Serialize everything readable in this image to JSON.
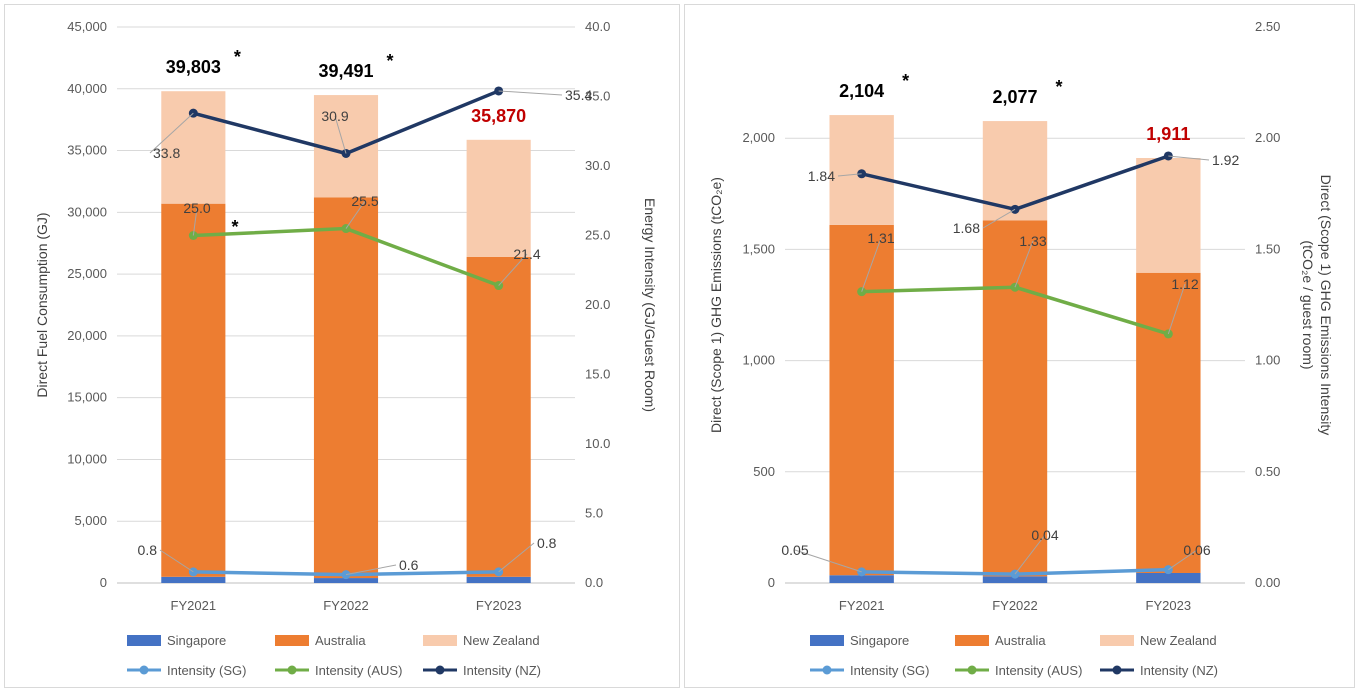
{
  "chart_data": [
    {
      "type": "bar",
      "stacked": true,
      "categories": [
        "FY2021",
        "FY2022",
        "FY2023"
      ],
      "series": [
        {
          "name": "Singapore",
          "kind": "bar",
          "color": "#4472c4",
          "values": [
            500,
            400,
            500
          ]
        },
        {
          "name": "Australia",
          "kind": "bar",
          "color": "#ed7d31",
          "values": [
            30200,
            30800,
            25900
          ]
        },
        {
          "name": "New Zealand",
          "kind": "bar",
          "color": "#f8cbad",
          "values": [
            9103,
            8291,
            9470
          ]
        },
        {
          "name": "Intensity (SG)",
          "kind": "line",
          "axis": "right",
          "color": "#5b9bd5",
          "values": [
            0.8,
            0.6,
            0.8
          ],
          "labels": [
            "0.8",
            "0.6",
            "0.8"
          ]
        },
        {
          "name": "Intensity (AUS)",
          "kind": "line",
          "axis": "right",
          "color": "#70ad47",
          "values": [
            25.0,
            25.5,
            21.4
          ],
          "labels": [
            "25.0",
            "25.5",
            "21.4"
          ]
        },
        {
          "name": "Intensity (NZ)",
          "kind": "line",
          "axis": "right",
          "color": "#203864",
          "values": [
            33.8,
            30.9,
            35.4
          ],
          "labels": [
            "33.8",
            "30.9",
            "35.4"
          ]
        }
      ],
      "totals": [
        "39,803",
        "39,491",
        "35,870"
      ],
      "total_colors": [
        "#000000",
        "#000000",
        "#c00000"
      ],
      "total_stars": [
        "*",
        "*",
        ""
      ],
      "aus_star": "*",
      "ylabel": "Direct Fuel Consumption (GJ)",
      "y2label": "Energy Intensity (GJ/Guest Room)",
      "ylim": [
        0,
        45000
      ],
      "y2lim": [
        0,
        40
      ],
      "yticks": [
        "0",
        "5,000",
        "10,000",
        "15,000",
        "20,000",
        "25,000",
        "30,000",
        "35,000",
        "40,000",
        "45,000"
      ],
      "y2ticks": [
        "0.0",
        "5.0",
        "10.0",
        "15.0",
        "20.0",
        "25.0",
        "30.0",
        "35.0",
        "40.0"
      ],
      "grid": true,
      "legend": "bottom"
    },
    {
      "type": "bar",
      "stacked": true,
      "categories": [
        "FY2021",
        "FY2022",
        "FY2023"
      ],
      "series": [
        {
          "name": "Singapore",
          "kind": "bar",
          "color": "#4472c4",
          "values": [
            35,
            30,
            45
          ]
        },
        {
          "name": "Australia",
          "kind": "bar",
          "color": "#ed7d31",
          "values": [
            1575,
            1600,
            1350
          ]
        },
        {
          "name": "New Zealand",
          "kind": "bar",
          "color": "#f8cbad",
          "values": [
            494,
            447,
            516
          ]
        },
        {
          "name": "Intensity (SG)",
          "kind": "line",
          "axis": "right",
          "color": "#5b9bd5",
          "values": [
            0.05,
            0.04,
            0.06
          ],
          "labels": [
            "0.05",
            "0.04",
            "0.06"
          ]
        },
        {
          "name": "Intensity (AUS)",
          "kind": "line",
          "axis": "right",
          "color": "#70ad47",
          "values": [
            1.31,
            1.33,
            1.12
          ],
          "labels": [
            "1.31",
            "1.33",
            "1.12"
          ]
        },
        {
          "name": "Intensity (NZ)",
          "kind": "line",
          "axis": "right",
          "color": "#203864",
          "values": [
            1.84,
            1.68,
            1.92
          ],
          "labels": [
            "1.84",
            "1.68",
            "1.92"
          ]
        }
      ],
      "totals": [
        "2,104",
        "2,077",
        "1,911"
      ],
      "total_colors": [
        "#000000",
        "#000000",
        "#c00000"
      ],
      "total_stars": [
        "*",
        "*",
        ""
      ],
      "ylabel": "Direct (Scope 1) GHG Emissions (tCO₂e)",
      "y2label_line1": "Direct (Scope 1) GHG Emissions Intensity",
      "y2label_line2": "(tCO₂e / guest room)",
      "ylim": [
        0,
        2500
      ],
      "y2lim": [
        0,
        2.5
      ],
      "yticks": [
        "0",
        "500",
        "1,000",
        "1,500",
        "2,000"
      ],
      "ytick_values": [
        0,
        500,
        1000,
        1500,
        2000
      ],
      "y2ticks": [
        "0.00",
        "0.50",
        "1.00",
        "1.50",
        "2.00",
        "2.50"
      ],
      "grid": true,
      "legend": "bottom"
    }
  ]
}
